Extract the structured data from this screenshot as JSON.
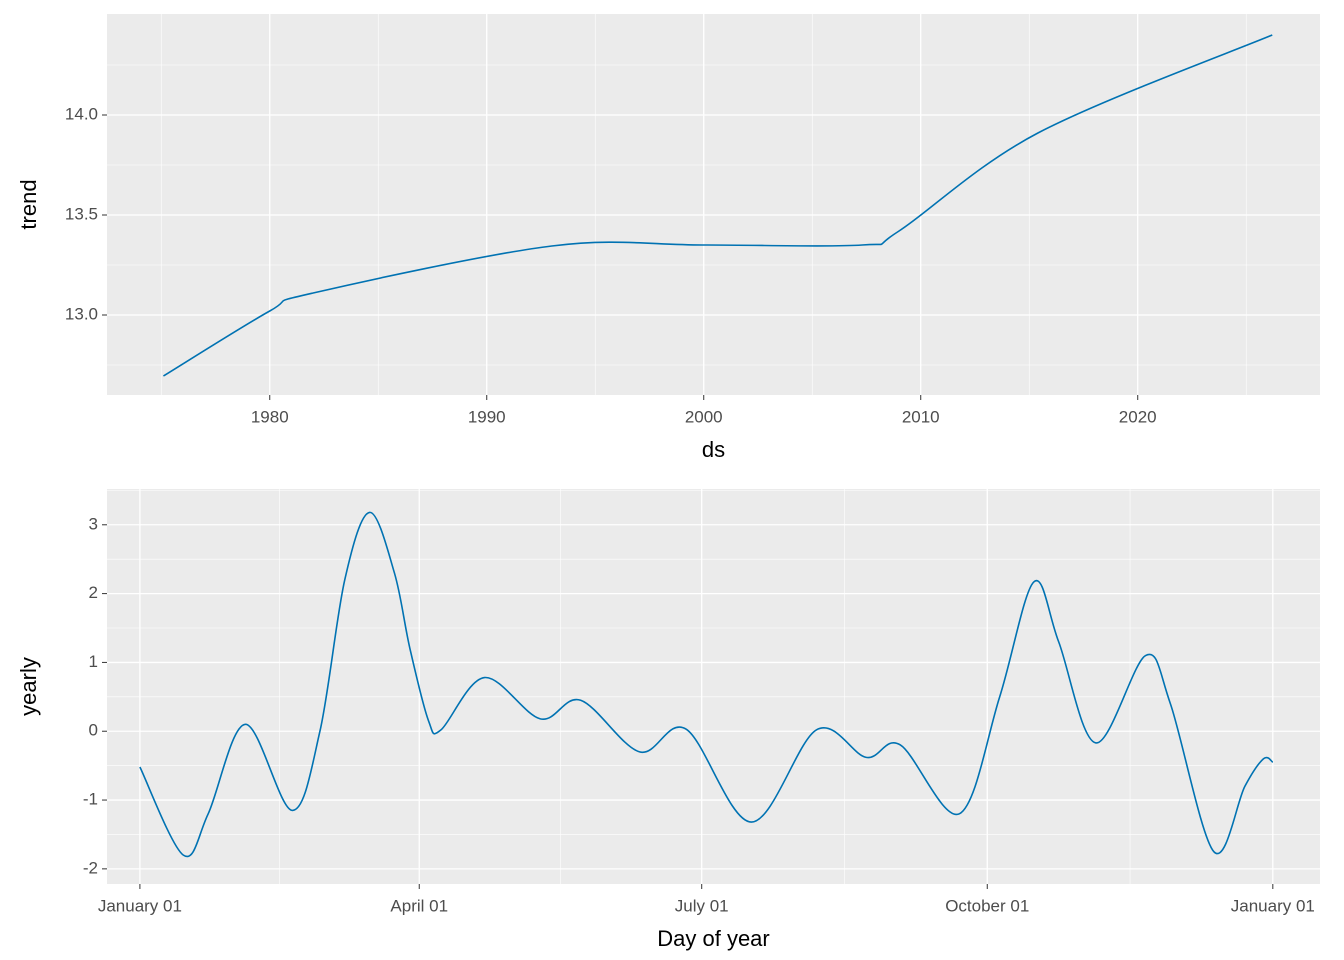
{
  "chart_data": [
    {
      "type": "line",
      "xlabel": "ds",
      "ylabel": "trend",
      "xlim": [
        1972.5,
        2028.4
      ],
      "ylim": [
        12.6,
        14.505
      ],
      "xticks": [
        1980,
        1990,
        2000,
        2010,
        2020
      ],
      "yticks": [
        {
          "value": 13,
          "label": "13.0"
        },
        13.5,
        {
          "value": 14,
          "label": "14.0"
        }
      ],
      "grid": true,
      "series": [
        {
          "name": "trend",
          "color": "#0072B2",
          "x": [
            1975.1,
            1980,
            1982,
            1993,
            2000,
            2007.3,
            2009,
            2015.4,
            2026.2
          ],
          "values": [
            12.695,
            13.02,
            13.11,
            13.345,
            13.35,
            13.35,
            13.42,
            13.91,
            14.4
          ]
        }
      ]
    },
    {
      "type": "line",
      "xlabel": "Day of year",
      "ylabel": "yearly",
      "xlim": [
        -10.6,
        380.2
      ],
      "ylim": [
        -2.22,
        3.52
      ],
      "xticks": [
        {
          "value": 0,
          "label": "January 01"
        },
        {
          "value": 90,
          "label": "April 01"
        },
        {
          "value": 181,
          "label": "July 01"
        },
        {
          "value": 273,
          "label": "October 01"
        },
        {
          "value": 365,
          "label": "January 01"
        }
      ],
      "yticks": [
        -2,
        -1,
        0,
        1,
        2,
        3
      ],
      "grid": true,
      "series": [
        {
          "name": "yearly",
          "color": "#0072B2",
          "x": [
            0,
            14,
            22,
            34,
            49,
            58,
            66,
            74,
            82,
            87,
            93,
            97,
            111,
            129,
            142,
            161,
            176,
            197,
            218,
            234,
            245,
            264,
            277,
            288,
            296,
            308,
            324,
            332,
            346,
            356,
            362,
            365
          ],
          "values": [
            -0.52,
            -1.8,
            -1.2,
            0.1,
            -1.15,
            0,
            2.2,
            3.18,
            2.3,
            1.2,
            0.15,
            0.02,
            0.78,
            0.18,
            0.45,
            -0.3,
            0.03,
            -1.32,
            0.02,
            -0.38,
            -0.2,
            -1.2,
            0.5,
            2.17,
            1.3,
            -0.17,
            1.1,
            0.4,
            -1.75,
            -0.8,
            -0.4,
            -0.45
          ]
        }
      ]
    }
  ]
}
